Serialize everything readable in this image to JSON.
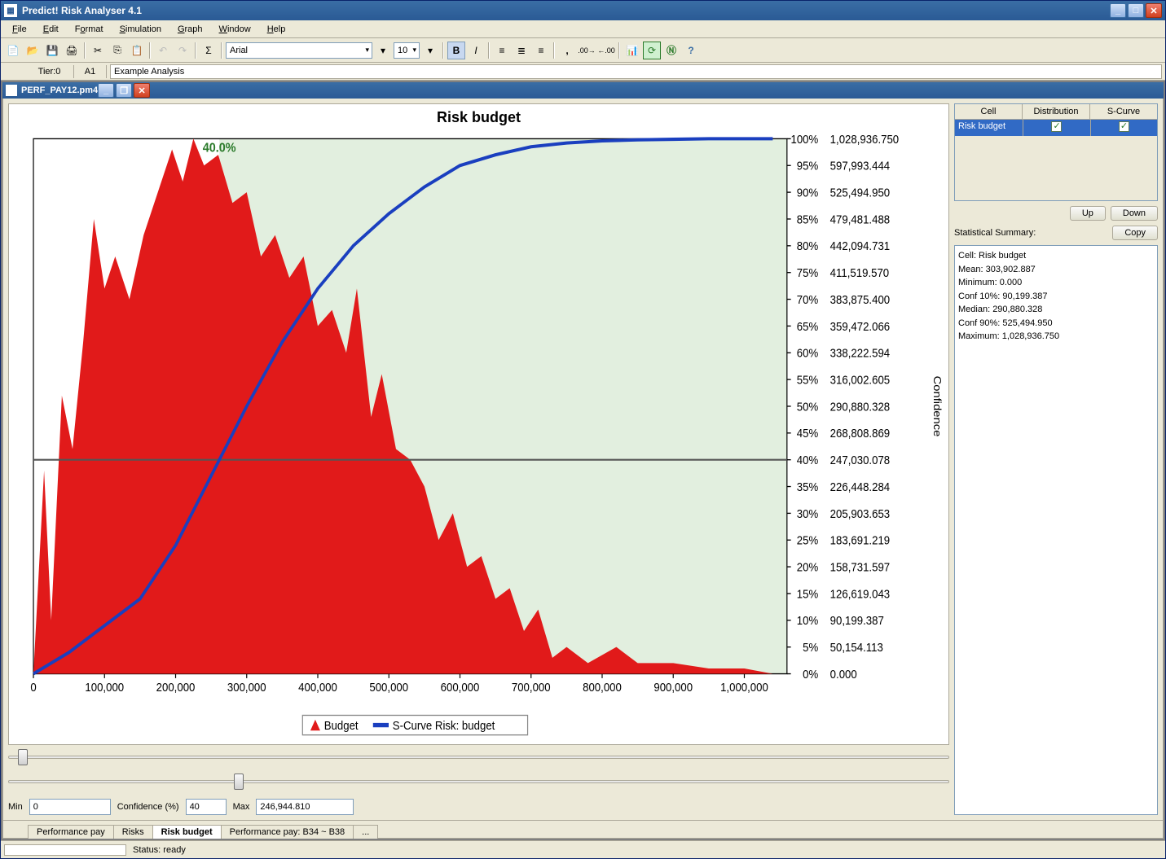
{
  "app_title": "Predict! Risk Analyser 4.1",
  "menus": [
    "File",
    "Edit",
    "Format",
    "Simulation",
    "Graph",
    "Window",
    "Help"
  ],
  "toolbar": {
    "font_name": "Arial",
    "font_size": "10"
  },
  "cellbar": {
    "tier": "Tier:0",
    "cell": "A1",
    "formula": "Example Analysis"
  },
  "doc_title": "PERF_PAY12.pm4",
  "chart": {
    "title": "Risk budget",
    "type": "area+line",
    "marker_label": "40.0%",
    "marker_confidence_pct": 40,
    "x_ticks": [
      0,
      100000,
      200000,
      300000,
      400000,
      500000,
      600000,
      700000,
      800000,
      900000,
      1000000
    ],
    "x_tick_labels": [
      "0",
      "100,000",
      "200,000",
      "300,000",
      "400,000",
      "500,000",
      "600,000",
      "700,000",
      "800,000",
      "900,000",
      "1,000,000"
    ],
    "x_max": 1060000,
    "y_pct_ticks": [
      0,
      5,
      10,
      15,
      20,
      25,
      30,
      35,
      40,
      45,
      50,
      55,
      60,
      65,
      70,
      75,
      80,
      85,
      90,
      95,
      100
    ],
    "confidence_values": [
      "0.000",
      "50,154.113",
      "90,199.387",
      "126,619.043",
      "158,731.597",
      "183,691.219",
      "205,903.653",
      "226,448.284",
      "247,030.078",
      "268,808.869",
      "290,880.328",
      "316,002.605",
      "338,222.594",
      "359,472.066",
      "383,875.400",
      "411,519.570",
      "442,094.731",
      "479,481.488",
      "525,494.950",
      "597,993.444",
      "1,028,936.750"
    ],
    "y_axis_right_label": "Confidence",
    "legend": {
      "budget": "Budget",
      "scurve": "S-Curve Risk: budget"
    },
    "colors": {
      "distribution_fill": "#e11a1a",
      "scurve_line": "#1a3fbf",
      "shade_fill": "#e2efdf",
      "marker_line": "#555555",
      "axis": "#000000",
      "background": "#ffffff"
    },
    "distribution_points": [
      [
        0,
        0
      ],
      [
        15,
        38
      ],
      [
        25,
        10
      ],
      [
        40,
        52
      ],
      [
        55,
        42
      ],
      [
        70,
        62
      ],
      [
        85,
        85
      ],
      [
        100,
        72
      ],
      [
        115,
        78
      ],
      [
        135,
        70
      ],
      [
        155,
        82
      ],
      [
        175,
        90
      ],
      [
        195,
        98
      ],
      [
        210,
        92
      ],
      [
        225,
        100
      ],
      [
        240,
        95
      ],
      [
        260,
        97
      ],
      [
        280,
        88
      ],
      [
        300,
        90
      ],
      [
        320,
        78
      ],
      [
        340,
        82
      ],
      [
        360,
        74
      ],
      [
        380,
        78
      ],
      [
        400,
        65
      ],
      [
        420,
        68
      ],
      [
        440,
        60
      ],
      [
        455,
        72
      ],
      [
        475,
        48
      ],
      [
        490,
        56
      ],
      [
        510,
        42
      ],
      [
        530,
        40
      ],
      [
        550,
        35
      ],
      [
        570,
        25
      ],
      [
        590,
        30
      ],
      [
        610,
        20
      ],
      [
        630,
        22
      ],
      [
        650,
        14
      ],
      [
        670,
        16
      ],
      [
        690,
        8
      ],
      [
        710,
        12
      ],
      [
        730,
        3
      ],
      [
        750,
        5
      ],
      [
        780,
        2
      ],
      [
        820,
        5
      ],
      [
        850,
        2
      ],
      [
        900,
        2
      ],
      [
        950,
        1
      ],
      [
        1000,
        1
      ],
      [
        1040,
        0
      ]
    ],
    "scurve_points": [
      [
        0,
        0
      ],
      [
        50,
        4
      ],
      [
        100,
        9
      ],
      [
        150,
        14
      ],
      [
        200,
        24
      ],
      [
        250,
        37
      ],
      [
        300,
        50
      ],
      [
        350,
        62
      ],
      [
        400,
        72
      ],
      [
        450,
        80
      ],
      [
        500,
        86
      ],
      [
        550,
        91
      ],
      [
        600,
        95
      ],
      [
        650,
        97
      ],
      [
        700,
        98.5
      ],
      [
        750,
        99.2
      ],
      [
        800,
        99.6
      ],
      [
        850,
        99.8
      ],
      [
        900,
        99.9
      ],
      [
        950,
        100
      ],
      [
        1040,
        100
      ]
    ]
  },
  "sliders": {
    "slider1_pos_pct": 1,
    "slider2_pos_pct": 24
  },
  "inputs": {
    "min_label": "Min",
    "min_value": "0",
    "conf_label": "Confidence (%)",
    "conf_value": "40",
    "max_label": "Max",
    "max_value": "246,944.810"
  },
  "sheet_tabs": [
    "Performance pay",
    "Risks",
    "Risk budget",
    "Performance pay: B34 ~ B38",
    "..."
  ],
  "active_sheet_tab": 2,
  "status": {
    "label": "Status: ready"
  },
  "side_panel": {
    "grid_headers": [
      "Cell",
      "Distribution",
      "S-Curve"
    ],
    "grid_row": {
      "cell": "Risk budget",
      "dist_checked": true,
      "scurve_checked": true
    },
    "up_btn": "Up",
    "down_btn": "Down",
    "stats_label": "Statistical Summary:",
    "copy_btn": "Copy",
    "stats_lines": [
      "Cell: Risk budget",
      "Mean: 303,902.887",
      "Minimum: 0.000",
      "Conf 10%: 90,199.387",
      "Median: 290,880.328",
      "Conf 90%: 525,494.950",
      "Maximum: 1,028,936.750"
    ]
  }
}
